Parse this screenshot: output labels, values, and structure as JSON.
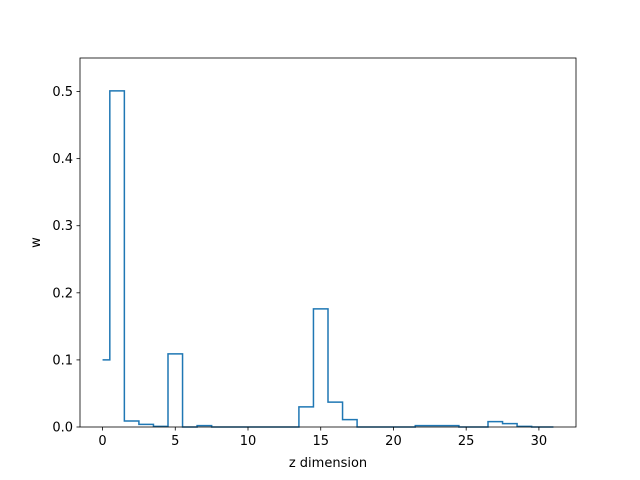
{
  "chart_data": {
    "type": "line",
    "drawstyle": "steps-mid",
    "xlabel": "z dimension",
    "ylabel": "w",
    "xlim": [
      -1.55,
      32.55
    ],
    "ylim": [
      0,
      0.55
    ],
    "xticks": [
      0,
      5,
      10,
      15,
      20,
      25,
      30
    ],
    "yticks": [
      0.0,
      0.1,
      0.2,
      0.3,
      0.4,
      0.5
    ],
    "xtick_labels": [
      "0",
      "5",
      "10",
      "15",
      "20",
      "25",
      "30"
    ],
    "ytick_labels": [
      "0.0",
      "0.1",
      "0.2",
      "0.3",
      "0.4",
      "0.5"
    ],
    "grid": false,
    "line_color": "#1f77b4",
    "series": [
      {
        "x": [
          0,
          1,
          2,
          3,
          4,
          5,
          6,
          7,
          8,
          9,
          10,
          11,
          12,
          13,
          14,
          15,
          16,
          17,
          18,
          19,
          20,
          21,
          22,
          23,
          24,
          25,
          26,
          27,
          28,
          29,
          30,
          31
        ],
        "values": [
          0.1,
          0.501,
          0.009,
          0.004,
          0.001,
          0.109,
          0.0,
          0.002,
          0.0,
          0.0,
          0.0,
          0.0,
          0.0,
          0.0,
          0.03,
          0.176,
          0.037,
          0.011,
          0.0,
          0.0,
          0.0,
          0.0,
          0.002,
          0.002,
          0.002,
          0.0,
          0.0,
          0.008,
          0.005,
          0.001,
          0.0,
          0.0
        ]
      }
    ]
  }
}
